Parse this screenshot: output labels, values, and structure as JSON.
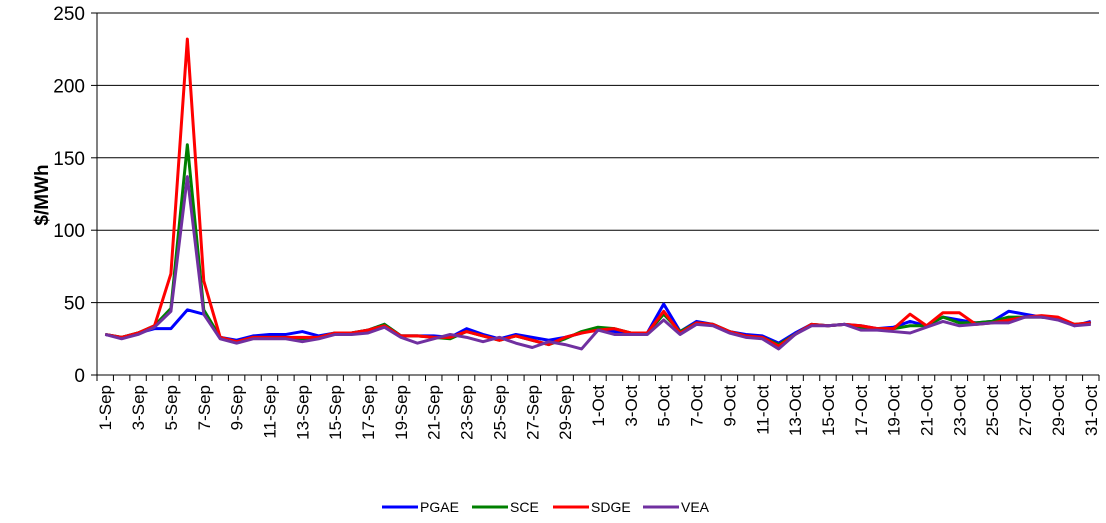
{
  "chart_data": {
    "type": "line",
    "ylabel": "$/MWh",
    "categories": [
      "1-Sep",
      null,
      "3-Sep",
      null,
      "5-Sep",
      null,
      "7-Sep",
      null,
      "9-Sep",
      null,
      "11-Sep",
      null,
      "13-Sep",
      null,
      "15-Sep",
      null,
      "17-Sep",
      null,
      "19-Sep",
      null,
      "21-Sep",
      null,
      "23-Sep",
      null,
      "25-Sep",
      null,
      "27-Sep",
      null,
      "29-Sep",
      null,
      "1-Oct",
      null,
      "3-Oct",
      null,
      "5-Oct",
      null,
      "7-Oct",
      null,
      "9-Oct",
      null,
      "11-Oct",
      null,
      "13-Oct",
      null,
      "15-Oct",
      null,
      "17-Oct",
      null,
      "19-Oct",
      null,
      "21-Oct",
      null,
      "23-Oct",
      null,
      "25-Oct",
      null,
      "27-Oct",
      null,
      "29-Oct",
      null,
      "31-Oct"
    ],
    "series": [
      {
        "name": "PGAE",
        "color": "#0000ff",
        "values": [
          28,
          26,
          29,
          32,
          32,
          45,
          42,
          26,
          24,
          27,
          28,
          28,
          30,
          27,
          29,
          29,
          31,
          35,
          27,
          27,
          27,
          26,
          32,
          28,
          25,
          28,
          26,
          24,
          26,
          29,
          32,
          30,
          29,
          29,
          49,
          30,
          37,
          35,
          30,
          28,
          27,
          22,
          29,
          35,
          34,
          35,
          34,
          32,
          33,
          37,
          34,
          40,
          38,
          36,
          37,
          44,
          42,
          40,
          39,
          34,
          37
        ]
      },
      {
        "name": "SCE",
        "color": "#008000",
        "values": [
          28,
          26,
          29,
          34,
          46,
          159,
          45,
          26,
          23,
          26,
          26,
          26,
          25,
          26,
          29,
          29,
          31,
          35,
          27,
          27,
          26,
          25,
          30,
          27,
          24,
          27,
          24,
          21,
          25,
          30,
          33,
          32,
          29,
          29,
          42,
          30,
          36,
          35,
          30,
          27,
          26,
          21,
          28,
          35,
          34,
          35,
          33,
          32,
          32,
          34,
          34,
          40,
          36,
          36,
          37,
          40,
          40,
          40,
          39,
          35,
          36
        ]
      },
      {
        "name": "SDGE",
        "color": "#ff0000",
        "values": [
          28,
          26,
          29,
          34,
          70,
          232,
          65,
          26,
          23,
          26,
          26,
          26,
          26,
          26,
          29,
          29,
          31,
          34,
          27,
          27,
          26,
          26,
          30,
          27,
          24,
          27,
          24,
          21,
          26,
          29,
          31,
          32,
          29,
          29,
          44,
          29,
          36,
          35,
          30,
          27,
          26,
          20,
          28,
          35,
          34,
          35,
          34,
          32,
          32,
          42,
          34,
          43,
          43,
          35,
          36,
          38,
          40,
          41,
          40,
          35,
          36
        ]
      },
      {
        "name": "VEA",
        "color": "#7030a0",
        "values": [
          28,
          25,
          28,
          33,
          44,
          137,
          42,
          25,
          22,
          25,
          25,
          25,
          23,
          25,
          28,
          28,
          29,
          33,
          26,
          22,
          25,
          28,
          26,
          23,
          26,
          22,
          19,
          23,
          21,
          18,
          31,
          28,
          28,
          28,
          38,
          28,
          35,
          34,
          29,
          26,
          25,
          18,
          28,
          34,
          34,
          35,
          31,
          31,
          30,
          29,
          33,
          37,
          34,
          35,
          36,
          36,
          40,
          40,
          38,
          34,
          35
        ]
      }
    ],
    "ylim": [
      0,
      250
    ],
    "yticks": [
      0,
      50,
      100,
      150,
      200,
      250
    ],
    "grid": true,
    "legend": "bottom"
  }
}
